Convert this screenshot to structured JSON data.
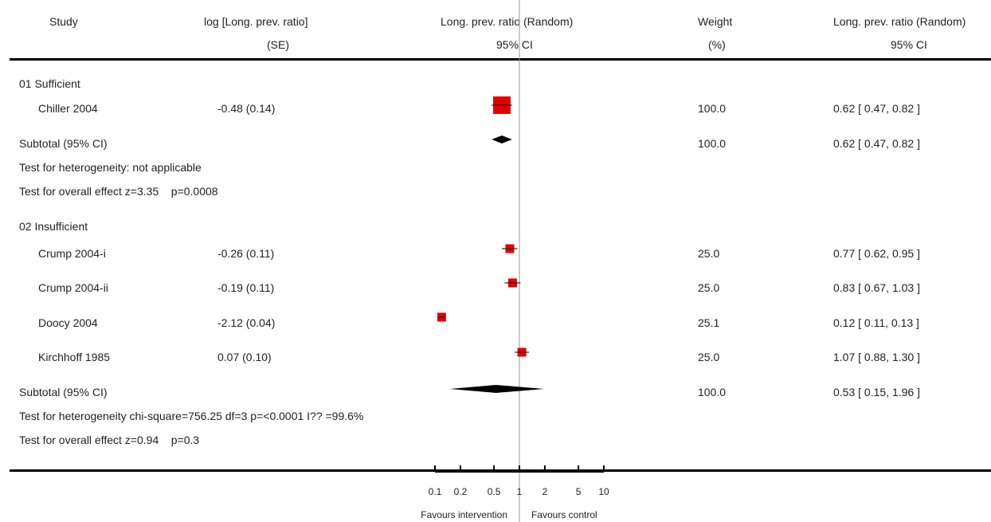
{
  "headers": {
    "study": "Study",
    "logratio": "log [Long. prev. ratio]",
    "logratio_se": "(SE)",
    "plot": "Long. prev. ratio (Random)",
    "plot_ci": "95% CI",
    "weight": "Weight",
    "weight_pct": "(%)",
    "result": "Long. prev. ratio (Random)",
    "result_ci": "95% CI"
  },
  "groups": [
    {
      "title": "01 Sufficient",
      "studies": [
        {
          "name": "Chiller 2004",
          "logse": "-0.48 (0.14)",
          "weight": "100.0",
          "ci": "0.62 [ 0.47, 0.82 ]"
        }
      ],
      "subtotal": {
        "label": "Subtotal (95% CI)",
        "weight": "100.0",
        "ci": "0.62 [ 0.47, 0.82 ]"
      },
      "heterogeneity": "Test for heterogeneity: not applicable",
      "overall": "Test for overall effect z=3.35    p=0.0008"
    },
    {
      "title": "02 Insufficient",
      "studies": [
        {
          "name": "Crump 2004-i",
          "logse": "-0.26 (0.11)",
          "weight": "25.0",
          "ci": "0.77 [ 0.62, 0.95 ]"
        },
        {
          "name": "Crump 2004-ii",
          "logse": "-0.19 (0.11)",
          "weight": "25.0",
          "ci": "0.83 [ 0.67, 1.03 ]"
        },
        {
          "name": "Doocy 2004",
          "logse": "-2.12 (0.04)",
          "weight": "25.1",
          "ci": "0.12 [ 0.11, 0.13 ]"
        },
        {
          "name": "Kirchhoff 1985",
          "logse": "0.07 (0.10)",
          "weight": "25.0",
          "ci": "1.07 [ 0.88, 1.30 ]"
        }
      ],
      "subtotal": {
        "label": "Subtotal (95% CI)",
        "weight": "100.0",
        "ci": "0.53 [ 0.15, 1.96 ]"
      },
      "heterogeneity": "Test for heterogeneity chi-square=756.25 df=3 p=<0.0001 I?? =99.6%",
      "overall": "Test for overall effect z=0.94    p=0.3"
    }
  ],
  "axis": {
    "ticks": [
      "0.1",
      "0.2",
      "0.5",
      "1",
      "2",
      "5",
      "10"
    ],
    "favours_left": "Favours intervention",
    "favours_right": "Favours control"
  },
  "chart_data": {
    "type": "forest",
    "scale": "log",
    "xlim": [
      0.1,
      10
    ],
    "null_line": 1,
    "tick_values": [
      0.1,
      0.2,
      0.5,
      1,
      2,
      5,
      10
    ],
    "colors": {
      "box": "#e00000",
      "diamond": "#000000",
      "line": "#000000",
      "null_line": "#999999"
    },
    "studies": [
      {
        "name": "Chiller 2004",
        "estimate": 0.62,
        "lower": 0.47,
        "upper": 0.82,
        "weight": 100.0
      },
      {
        "name": "Crump 2004-i",
        "estimate": 0.77,
        "lower": 0.62,
        "upper": 0.95,
        "weight": 25.0
      },
      {
        "name": "Crump 2004-ii",
        "estimate": 0.83,
        "lower": 0.67,
        "upper": 1.03,
        "weight": 25.0
      },
      {
        "name": "Doocy 2004",
        "estimate": 0.12,
        "lower": 0.11,
        "upper": 0.13,
        "weight": 25.1
      },
      {
        "name": "Kirchhoff 1985",
        "estimate": 1.07,
        "lower": 0.88,
        "upper": 1.3,
        "weight": 25.0
      }
    ],
    "subtotals": [
      {
        "name": "01 Sufficient",
        "estimate": 0.62,
        "lower": 0.47,
        "upper": 0.82
      },
      {
        "name": "02 Insufficient",
        "estimate": 0.53,
        "lower": 0.15,
        "upper": 1.96
      }
    ]
  }
}
